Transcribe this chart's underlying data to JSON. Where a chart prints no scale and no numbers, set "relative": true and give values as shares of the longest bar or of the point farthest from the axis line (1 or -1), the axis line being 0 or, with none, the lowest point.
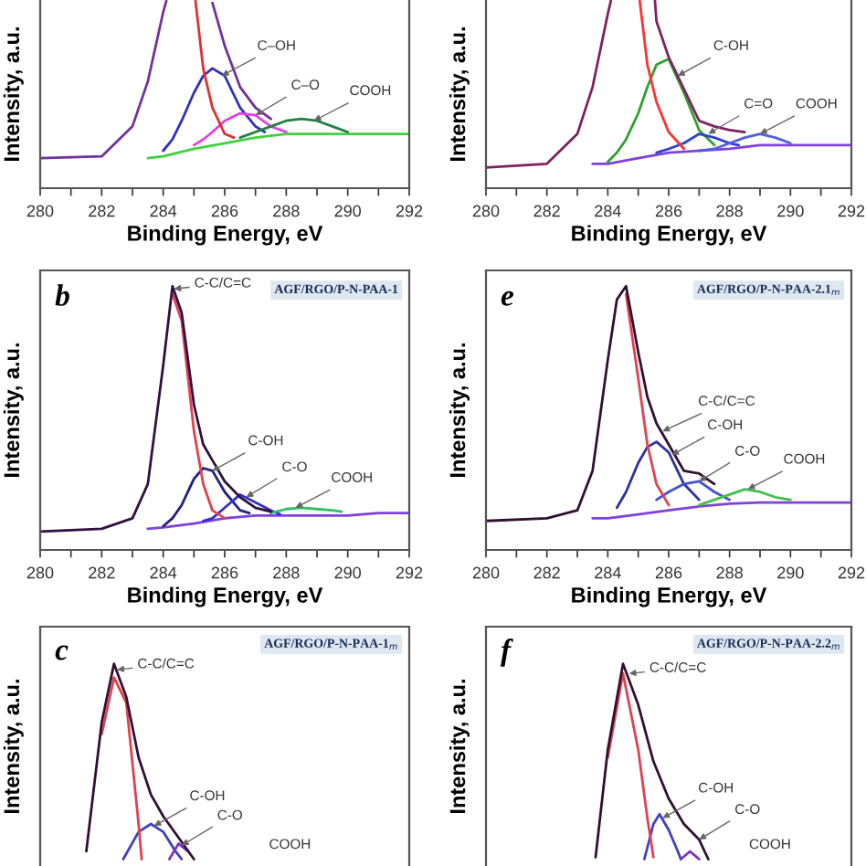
{
  "chart_data": [
    {
      "type": "line",
      "relative": true,
      "xlabel": "Binding Energy, eV",
      "ylabel": "Intensity, a.u.",
      "xlim": [
        280,
        292
      ],
      "tick_labels": "x",
      "xticks": [
        280,
        {
          "value": 281,
          "label": null
        },
        282,
        {
          "value": 283,
          "label": null
        },
        284,
        {
          "value": 285,
          "label": null
        },
        286,
        {
          "value": 287,
          "label": null
        },
        288,
        {
          "value": 289,
          "label": null
        },
        290,
        {
          "value": 291,
          "label": null
        },
        292
      ],
      "series": [
        {
          "color": "#40d040",
          "x": [
            283.5,
            284,
            285,
            286,
            287,
            288,
            289,
            290,
            291,
            292
          ],
          "values": [
            0.16,
            0.17,
            0.21,
            0.24,
            0.27,
            0.29,
            0.29,
            0.29,
            0.29,
            0.29
          ]
        },
        {
          "color": "#3030c0",
          "x": [
            284,
            284.3,
            284.6,
            285,
            285.3,
            285.6,
            286,
            286.5,
            287,
            287.3
          ],
          "values": [
            0.2,
            0.26,
            0.36,
            0.51,
            0.6,
            0.64,
            0.6,
            0.43,
            0.33,
            0.3
          ]
        },
        {
          "color": "#e040e0",
          "x": [
            285,
            285.3,
            285.6,
            286,
            286.5,
            287,
            287.5,
            288
          ],
          "values": [
            0.23,
            0.26,
            0.3,
            0.36,
            0.4,
            0.39,
            0.33,
            0.3
          ]
        },
        {
          "color": "#208040",
          "x": [
            286.5,
            287,
            287.5,
            288,
            288.5,
            289,
            289.5,
            290
          ],
          "values": [
            0.27,
            0.3,
            0.33,
            0.36,
            0.37,
            0.36,
            0.33,
            0.3
          ]
        },
        {
          "color": "#e03030",
          "x": [
            285.05,
            285.3,
            285.6,
            286,
            286.3
          ],
          "values": [
            1.0,
            0.64,
            0.43,
            0.29,
            0.27
          ]
        },
        {
          "color": "#7030a0",
          "x": [
            280,
            282,
            283,
            283.5,
            284,
            284.1,
            284.6,
            285.6,
            286,
            286.5,
            287,
            287.5
          ],
          "values": [
            0.16,
            0.17,
            0.33,
            0.57,
            0.94,
            1.0,
            null,
            0.99,
            0.76,
            0.54,
            0.43,
            0.37
          ]
        }
      ],
      "annotations": [
        {
          "text": "C–OH",
          "x": 285.9,
          "y": 0.6
        },
        {
          "text": "C–O",
          "x": 287.0,
          "y": 0.39
        },
        {
          "text": "COOH",
          "x": 288.9,
          "y": 0.36
        }
      ]
    },
    {
      "type": "line",
      "relative": true,
      "xlabel": "Binding Energy, eV",
      "ylabel": "Intensity, a.u.",
      "xlim": [
        280,
        292
      ],
      "tick_labels": "x",
      "xticks": [
        280,
        {
          "value": 281,
          "label": null
        },
        282,
        {
          "value": 283,
          "label": null
        },
        284,
        {
          "value": 285,
          "label": null
        },
        286,
        {
          "value": 287,
          "label": null
        },
        288,
        {
          "value": 289,
          "label": null
        },
        290,
        {
          "value": 291,
          "label": null
        },
        292
      ],
      "series": [
        {
          "color": "#8040e0",
          "x": [
            283.5,
            284,
            285,
            286,
            287,
            288,
            289,
            290,
            291,
            292
          ],
          "values": [
            0.13,
            0.13,
            0.16,
            0.19,
            0.2,
            0.21,
            0.23,
            0.23,
            0.23,
            0.23
          ]
        },
        {
          "color": "#30a030",
          "x": [
            284,
            284.3,
            284.6,
            285,
            285.3,
            285.6,
            286,
            286.5,
            287,
            287.5
          ],
          "values": [
            0.14,
            0.19,
            0.26,
            0.4,
            0.54,
            0.66,
            0.69,
            0.51,
            0.31,
            0.23
          ]
        },
        {
          "color": "#3040d0",
          "x": [
            285.6,
            286,
            286.5,
            287,
            287.5,
            288,
            288.3
          ],
          "values": [
            0.19,
            0.21,
            0.24,
            0.29,
            0.27,
            0.24,
            0.23
          ]
        },
        {
          "color": "#5060e0",
          "x": [
            287,
            287.5,
            288,
            288.5,
            289,
            289.5,
            290
          ],
          "values": [
            0.2,
            0.21,
            0.24,
            0.27,
            0.29,
            0.27,
            0.24
          ]
        },
        {
          "color": "#ff3030",
          "x": [
            285.05,
            285.3,
            285.6,
            286,
            286.5
          ],
          "values": [
            1.0,
            0.66,
            0.46,
            0.3,
            0.21
          ]
        },
        {
          "color": "#802060",
          "x": [
            280,
            282,
            283,
            283.5,
            284,
            284.1,
            284.6,
            285.55,
            285.6,
            286,
            286.5,
            287,
            287.5,
            288,
            288.5
          ],
          "values": [
            0.11,
            0.13,
            0.29,
            0.54,
            0.93,
            1.0,
            null,
            1.0,
            0.89,
            0.7,
            0.53,
            0.36,
            0.33,
            0.31,
            0.3
          ]
        }
      ],
      "annotations": [
        {
          "text": "C-OH",
          "x": 286.3,
          "y": 0.6
        },
        {
          "text": "C=O",
          "x": 287.3,
          "y": 0.29
        },
        {
          "text": "COOH",
          "x": 289.0,
          "y": 0.29
        }
      ]
    },
    {
      "type": "line",
      "relative": true,
      "title": "AGF/RGO/P-N-PAA-1",
      "xlabel": "Binding Energy, eV",
      "ylabel": "Intensity, a.u.",
      "xlim": [
        280,
        292
      ],
      "tick_labels": "x",
      "xticks": [
        280,
        {
          "value": 281,
          "label": null
        },
        282,
        {
          "value": 283,
          "label": null
        },
        284,
        {
          "value": 285,
          "label": null
        },
        286,
        {
          "value": 287,
          "label": null
        },
        288,
        {
          "value": 289,
          "label": null
        },
        290,
        {
          "value": 291,
          "label": null
        },
        292
      ],
      "series": [
        {
          "color": "#8040e0",
          "x": [
            283.5,
            284,
            285,
            286,
            287,
            288,
            289,
            290,
            291,
            292
          ],
          "values": [
            0.08,
            0.085,
            0.1,
            0.12,
            0.13,
            0.13,
            0.13,
            0.13,
            0.14,
            0.14
          ]
        },
        {
          "color": "#202080",
          "x": [
            284,
            284.3,
            284.6,
            285,
            285.3,
            285.6,
            286,
            286.5,
            286.8
          ],
          "values": [
            0.09,
            0.12,
            0.17,
            0.27,
            0.31,
            0.3,
            0.22,
            0.15,
            0.14
          ]
        },
        {
          "color": "#3030d0",
          "x": [
            285.3,
            285.6,
            286,
            286.5,
            287,
            287.5,
            287.8
          ],
          "values": [
            0.11,
            0.12,
            0.16,
            0.21,
            0.18,
            0.15,
            0.135
          ]
        },
        {
          "color": "#30c060",
          "x": [
            287.5,
            288,
            288.5,
            289,
            289.5,
            289.8
          ],
          "values": [
            0.14,
            0.155,
            0.16,
            0.155,
            0.15,
            0.145
          ]
        },
        {
          "color": "#e04050",
          "x": [
            284.3,
            284.6,
            285,
            285.3,
            285.6,
            286
          ],
          "values": [
            0.97,
            0.87,
            0.45,
            0.25,
            0.15,
            0.12
          ]
        },
        {
          "color": "#301040",
          "x": [
            280,
            282,
            283,
            283.5,
            284,
            284.3,
            284.6,
            285,
            285.3,
            285.6,
            286,
            286.5,
            287,
            287.5
          ],
          "values": [
            0.07,
            0.08,
            0.12,
            0.25,
            0.7,
            1.0,
            0.9,
            0.55,
            0.4,
            0.34,
            0.26,
            0.2,
            0.16,
            0.145
          ]
        }
      ],
      "annotations": [
        "b",
        {
          "text": "C-C/C=C",
          "x": 284.35,
          "y": 0.99
        },
        {
          "text": "C-OH",
          "x": 285.6,
          "y": 0.3
        },
        {
          "text": "C-O",
          "x": 286.7,
          "y": 0.2
        },
        {
          "text": "COOH",
          "x": 288.3,
          "y": 0.16
        }
      ]
    },
    {
      "type": "line",
      "relative": true,
      "title": "AGF/RGO/P-N-PAA-2.1$_{m}$",
      "xlabel": "Binding Energy, eV",
      "ylabel": "Intensity, a.u.",
      "xlim": [
        280,
        292
      ],
      "tick_labels": "x",
      "xticks": [
        280,
        {
          "value": 281,
          "label": null
        },
        282,
        {
          "value": 283,
          "label": null
        },
        284,
        {
          "value": 285,
          "label": null
        },
        286,
        {
          "value": 287,
          "label": null
        },
        288,
        {
          "value": 289,
          "label": null
        },
        290,
        {
          "value": 291,
          "label": null
        },
        292
      ],
      "series": [
        {
          "color": "#8040e0",
          "x": [
            283.5,
            284,
            285,
            286,
            287,
            288,
            289,
            290,
            291,
            292
          ],
          "values": [
            0.12,
            0.12,
            0.135,
            0.15,
            0.165,
            0.175,
            0.18,
            0.18,
            0.18,
            0.18
          ]
        },
        {
          "color": "#3030a0",
          "x": [
            284.3,
            284.6,
            285,
            285.3,
            285.6,
            286,
            286.5,
            287
          ],
          "values": [
            0.16,
            0.22,
            0.33,
            0.39,
            0.41,
            0.37,
            0.25,
            0.19
          ]
        },
        {
          "color": "#4050d0",
          "x": [
            285.6,
            286,
            286.5,
            287,
            287.5,
            288
          ],
          "values": [
            0.19,
            0.22,
            0.25,
            0.26,
            0.22,
            0.19
          ]
        },
        {
          "color": "#40c050",
          "x": [
            287,
            287.5,
            288,
            288.5,
            289,
            289.5,
            290
          ],
          "values": [
            0.17,
            0.19,
            0.21,
            0.23,
            0.22,
            0.2,
            0.19
          ]
        },
        {
          "color": "#e04050",
          "x": [
            284.6,
            285,
            285.3,
            285.6,
            286
          ],
          "values": [
            0.97,
            0.65,
            0.4,
            0.25,
            0.17
          ]
        },
        {
          "color": "#301030",
          "x": [
            280,
            282,
            283,
            283.5,
            284,
            284.3,
            284.6,
            285,
            285.3,
            285.6,
            286,
            286.5,
            287,
            287.5
          ],
          "values": [
            0.11,
            0.12,
            0.15,
            0.3,
            0.72,
            0.95,
            1.0,
            0.75,
            0.58,
            0.48,
            0.4,
            0.3,
            0.29,
            0.25
          ]
        }
      ],
      "annotations": [
        "e",
        {
          "text": "C-C/C=C",
          "x": 285.8,
          "y": 0.45
        },
        {
          "text": "C-OH",
          "x": 286.1,
          "y": 0.36
        },
        {
          "text": "C-O",
          "x": 287.0,
          "y": 0.26
        },
        {
          "text": "COOH",
          "x": 288.6,
          "y": 0.23
        }
      ]
    },
    {
      "type": "line",
      "relative": true,
      "title": "AGF/RGO/P-N-PAA-1$_{m}$",
      "ylabel": "Intensity, a.u.",
      "xlim": [
        280,
        292
      ],
      "tick_labels": false,
      "series": [
        {
          "color": "#4040c0",
          "x": [
            282.7,
            283.2,
            283.6,
            284,
            284.4,
            284.6
          ],
          "values": [
            0,
            0.14,
            0.18,
            0.14,
            0.04,
            0
          ]
        },
        {
          "color": "#8030c0",
          "x": [
            284.2,
            284.5,
            284.8
          ],
          "values": [
            0,
            0.08,
            0.04
          ]
        },
        {
          "color": "#e04050",
          "x": [
            282,
            282.4,
            282.8,
            283,
            283.2,
            283.3
          ],
          "values": [
            0.64,
            0.93,
            0.8,
            0.49,
            0.18,
            0
          ]
        },
        {
          "color": "#301030",
          "x": [
            281.5,
            282,
            282.4,
            282.8,
            283.2,
            283.6,
            284,
            284.5,
            285
          ],
          "values": [
            0.04,
            0.7,
            1.0,
            0.83,
            0.52,
            0.33,
            0.22,
            0.11,
            0
          ]
        }
      ],
      "annotations": [
        "c",
        {
          "text": "C-C/C=C",
          "x": 282.5,
          "y": 0.97
        },
        {
          "text": "C-OH",
          "x": 283.7,
          "y": 0.17
        },
        {
          "text": "C-O",
          "x": 284.6,
          "y": 0.07
        },
        "COOH"
      ]
    },
    {
      "type": "line",
      "relative": true,
      "title": "AGF/RGO/P-N-PAA-2.2$_{m}$",
      "ylabel": "Intensity, a.u.",
      "xlim": [
        280,
        292
      ],
      "tick_labels": false,
      "series": [
        {
          "color": "#4040c0",
          "x": [
            285.2,
            285.5,
            285.7,
            286,
            286.3,
            286.4
          ],
          "values": [
            0,
            0.18,
            0.23,
            0.15,
            0.04,
            0
          ]
        },
        {
          "color": "#8030c0",
          "x": [
            286.4,
            286.7,
            287.0
          ],
          "values": [
            0,
            0.04,
            0
          ]
        },
        {
          "color": "#e04050",
          "x": [
            284,
            284.5,
            285,
            285.3,
            285.5
          ],
          "values": [
            0.52,
            0.95,
            0.56,
            0.21,
            0.01
          ]
        },
        {
          "color": "#301030",
          "x": [
            283.6,
            284,
            284.5,
            285,
            285.5,
            286,
            286.5,
            287,
            287.3
          ],
          "values": [
            0.01,
            0.56,
            1.0,
            0.79,
            0.5,
            0.31,
            0.18,
            0.1,
            0
          ]
        }
      ],
      "annotations": [
        "f",
        {
          "text": "C-C/C=C",
          "x": 284.7,
          "y": 0.95
        },
        {
          "text": "C-OH",
          "x": 285.8,
          "y": 0.21
        },
        {
          "text": "C-O",
          "x": 287.0,
          "y": 0.1
        },
        "COOH"
      ]
    }
  ]
}
